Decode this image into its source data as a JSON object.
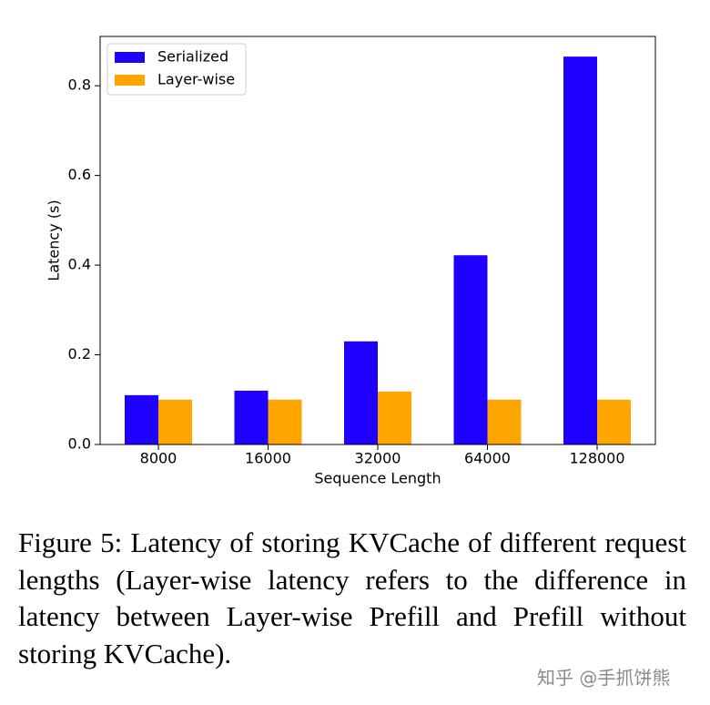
{
  "chart_data": {
    "type": "bar",
    "xlabel": "Sequence Length",
    "ylabel": "Latency (s)",
    "categories": [
      "8000",
      "16000",
      "32000",
      "64000",
      "128000"
    ],
    "series": [
      {
        "name": "Serialized",
        "color": "#1f00ff",
        "values": [
          0.11,
          0.12,
          0.23,
          0.422,
          0.865
        ]
      },
      {
        "name": "Layer-wise",
        "color": "#ffa500",
        "values": [
          0.1,
          0.1,
          0.118,
          0.1,
          0.1
        ]
      }
    ],
    "ylim": [
      0,
      0.91
    ],
    "yticks": [
      {
        "value": 0,
        "label": "0.0"
      },
      0.2,
      0.4,
      0.6,
      0.8
    ],
    "legend": "upper left"
  },
  "caption": "Figure 5: Latency of storing KVCache of different request lengths (Layer-wise latency refers to the difference in latency between Layer-wise Prefill and Prefill without storing KVCache).",
  "watermark": "知乎 @手抓饼熊"
}
